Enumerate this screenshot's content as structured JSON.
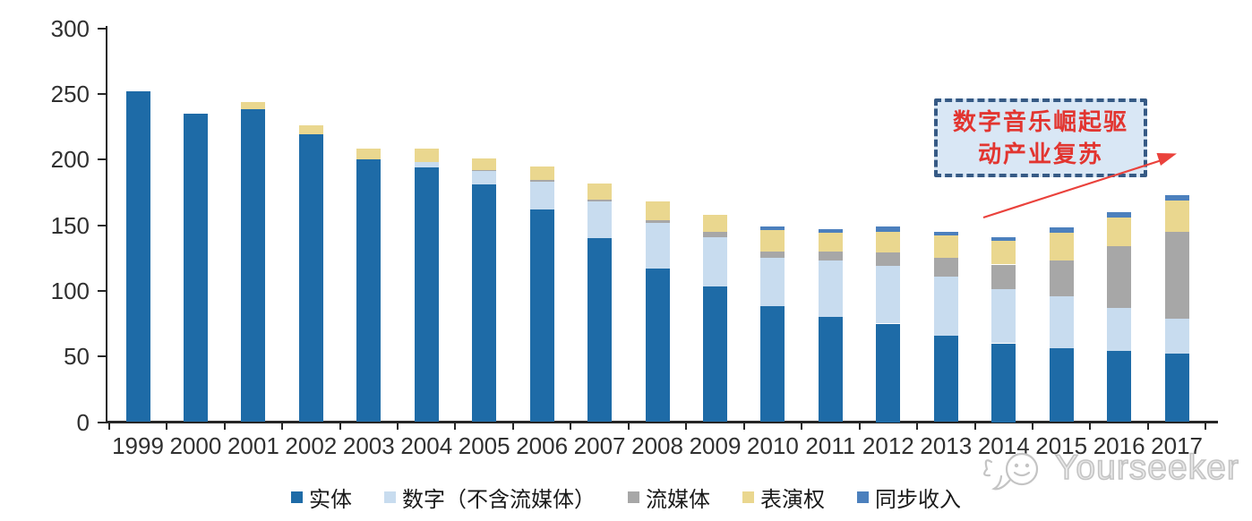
{
  "watermark": {
    "text": "Yourseeker",
    "color": "#c4c4c4"
  },
  "annotation": {
    "line1": "数字音乐崛起驱",
    "line2": "动产业复苏",
    "text_color": "#E23530",
    "box_fill": "#D9E7F5",
    "border_color": "#365A85",
    "arrow_color": "#EA423C"
  },
  "chart_data": {
    "type": "bar",
    "stacked": true,
    "title": "",
    "xlabel": "",
    "ylabel": "",
    "grid": false,
    "legend_position": "bottom",
    "ylim": [
      0,
      300
    ],
    "yticks": [
      0,
      50,
      100,
      150,
      200,
      250,
      300
    ],
    "categories": [
      "1999",
      "2000",
      "2001",
      "2002",
      "2003",
      "2004",
      "2005",
      "2006",
      "2007",
      "2008",
      "2009",
      "2010",
      "2011",
      "2012",
      "2013",
      "2014",
      "2015",
      "2016",
      "2017"
    ],
    "series": [
      {
        "key": "physical",
        "name": "实体",
        "color": "#1E6BA7",
        "values": [
          252,
          235,
          238,
          219,
          200,
          194,
          181,
          162,
          140,
          117,
          103,
          88,
          80,
          75,
          66,
          60,
          56,
          54,
          52
        ]
      },
      {
        "key": "digital-excl-streaming",
        "name": "数字（不含流媒体）",
        "color": "#C8DCEF",
        "values": [
          0,
          0,
          0,
          0,
          0,
          4,
          10,
          21,
          28,
          35,
          38,
          37,
          43,
          44,
          45,
          41,
          40,
          33,
          27
        ]
      },
      {
        "key": "streaming",
        "name": "流媒体",
        "color": "#A7A7A7",
        "values": [
          0,
          0,
          0,
          0,
          0,
          0,
          1,
          1.5,
          1.5,
          2,
          4,
          5,
          7,
          10,
          14,
          19,
          27,
          47,
          66
        ]
      },
      {
        "key": "performance-rights",
        "name": "表演权",
        "color": "#EAD78F",
        "values": [
          0,
          0,
          6,
          7,
          8,
          10,
          9,
          10.5,
          12,
          14,
          13,
          16,
          14,
          16,
          17,
          18,
          21,
          22,
          24
        ]
      },
      {
        "key": "sync",
        "name": "同步收入",
        "color": "#4C80BD",
        "values": [
          0,
          0,
          0,
          0,
          0,
          0,
          0,
          0,
          0,
          0,
          0,
          3,
          3,
          4,
          3,
          3,
          4,
          4,
          4
        ]
      }
    ]
  }
}
